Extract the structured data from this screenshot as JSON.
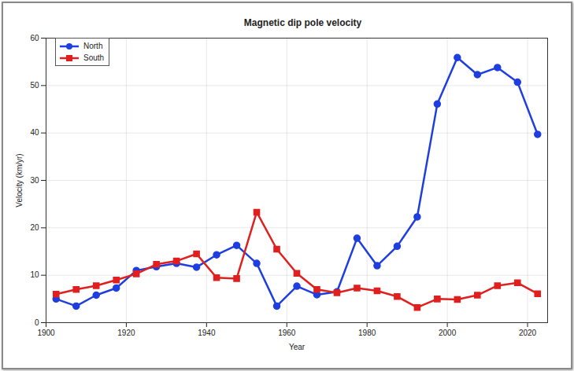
{
  "chart_data": {
    "type": "line",
    "title": "Magnetic dip pole velocity",
    "x_label": "Year",
    "y_label": "Velocity (km/yr)",
    "x": [
      1902.5,
      1907.5,
      1912.5,
      1917.5,
      1922.5,
      1927.5,
      1932.5,
      1937.5,
      1942.5,
      1947.5,
      1952.5,
      1957.5,
      1962.5,
      1967.5,
      1972.5,
      1977.5,
      1982.5,
      1987.5,
      1992.5,
      1997.5,
      2002.5,
      2007.5,
      2012.5,
      2017.5,
      2022.5
    ],
    "series": [
      {
        "name": "North",
        "color": "#1f3ee0",
        "marker": "circle",
        "line_style": "solid",
        "values": [
          5.0,
          3.5,
          5.8,
          7.3,
          11.0,
          11.8,
          12.5,
          11.7,
          14.3,
          16.3,
          12.5,
          3.5,
          7.7,
          5.9,
          6.5,
          17.8,
          12.0,
          16.1,
          22.3,
          46.1,
          55.9,
          52.3,
          53.8,
          50.7,
          39.7
        ]
      },
      {
        "name": "South",
        "color": "#e01f1f",
        "marker": "square",
        "line_style": "solid",
        "values": [
          6.0,
          7.0,
          7.8,
          9.0,
          10.3,
          12.3,
          13.0,
          14.5,
          9.5,
          9.3,
          23.3,
          15.5,
          10.4,
          7.0,
          6.3,
          7.3,
          6.7,
          5.5,
          3.2,
          5.0,
          4.9,
          5.8,
          7.8,
          8.4,
          6.1
        ]
      }
    ],
    "xlim": [
      1900,
      2025
    ],
    "xticks": [
      1900,
      1920,
      1940,
      1960,
      1980,
      2000,
      2020
    ],
    "ylim": [
      0,
      60
    ],
    "yticks": [
      0,
      10,
      20,
      30,
      40,
      50,
      60
    ],
    "grid": true,
    "legend": "top-left"
  }
}
